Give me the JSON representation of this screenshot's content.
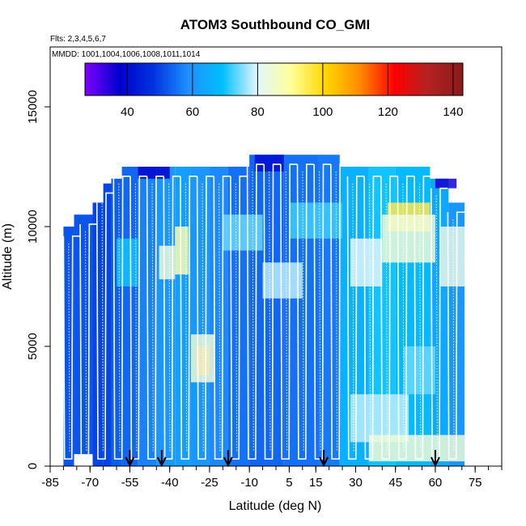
{
  "chart_data": {
    "type": "heatmap",
    "title": "ATOM3 Southbound CO_GMI",
    "flights_label": "Flts: 2,3,4,5,6,7",
    "dates_label": "MMDD: 1001,1004,1006,1008,1011,1014",
    "xlabel": "Latitude (deg N)",
    "ylabel": "Altitude (m)",
    "xlim": [
      -85,
      85
    ],
    "ylim": [
      0,
      17500
    ],
    "x_ticks": [
      -85,
      -70,
      -55,
      -40,
      -25,
      -10,
      5,
      15,
      30,
      45,
      60,
      75
    ],
    "x_minor_tick_step": 5,
    "y_ticks": [
      0,
      5000,
      10000,
      15000
    ],
    "colorbar": {
      "range": [
        27,
        143
      ],
      "ticks": [
        40,
        60,
        80,
        100,
        120,
        140
      ],
      "tick_labels": [
        "40",
        "60",
        "80",
        "100",
        "120",
        "140"
      ],
      "colors": [
        "#7f00ff",
        "#0000cd",
        "#0033e0",
        "#1e90ff",
        "#00bfff",
        "#e0f6ff",
        "#ffff99",
        "#ffd700",
        "#ff8c00",
        "#ff0000",
        "#b22222",
        "#8b1a1a"
      ]
    },
    "curtain_x_range": [
      -80,
      71
    ],
    "curtain_segments": [
      {
        "x": [
          -80,
          -76
        ],
        "top": 10000,
        "bottom": 0,
        "value": 52
      },
      {
        "x": [
          -76,
          -69
        ],
        "top": 10500,
        "bottom": 500,
        "value": 52
      },
      {
        "x": [
          -69,
          -65
        ],
        "top": 11000,
        "bottom": 0,
        "value": 50
      },
      {
        "x": [
          -65,
          -62
        ],
        "top": 11800,
        "bottom": 0,
        "value": 50
      },
      {
        "x": [
          -62,
          -58
        ],
        "top": 12000,
        "bottom": 0,
        "value": 53
      },
      {
        "x": [
          -58,
          -52
        ],
        "top": 12500,
        "bottom": 0,
        "value": 54
      },
      {
        "x": [
          -52,
          -45
        ],
        "top": 12500,
        "bottom": 0,
        "value": 57
      },
      {
        "x": [
          -45,
          -38
        ],
        "top": 12500,
        "bottom": 0,
        "value": 60
      },
      {
        "x": [
          -38,
          -32
        ],
        "top": 12500,
        "bottom": 0,
        "value": 62
      },
      {
        "x": [
          -32,
          -25
        ],
        "top": 12500,
        "bottom": 0,
        "value": 60
      },
      {
        "x": [
          -25,
          -18
        ],
        "top": 12500,
        "bottom": 0,
        "value": 58
      },
      {
        "x": [
          -18,
          -10
        ],
        "top": 12500,
        "bottom": 0,
        "value": 55
      },
      {
        "x": [
          -10,
          3
        ],
        "top": 13000,
        "bottom": 0,
        "value": 54
      },
      {
        "x": [
          3,
          16
        ],
        "top": 13000,
        "bottom": 0,
        "value": 55
      },
      {
        "x": [
          16,
          24
        ],
        "top": 13000,
        "bottom": 0,
        "value": 56
      },
      {
        "x": [
          24,
          35
        ],
        "top": 12500,
        "bottom": 0,
        "value": 66
      },
      {
        "x": [
          35,
          45
        ],
        "top": 12500,
        "bottom": 0,
        "value": 70
      },
      {
        "x": [
          45,
          58
        ],
        "top": 12500,
        "bottom": 0,
        "value": 68
      },
      {
        "x": [
          58,
          65
        ],
        "top": 12000,
        "bottom": 0,
        "value": 64
      },
      {
        "x": [
          65,
          71
        ],
        "top": 11000,
        "bottom": 0,
        "value": 60
      }
    ],
    "curtain_features": [
      {
        "x": [
          -38,
          -33
        ],
        "y": [
          8000,
          10000
        ],
        "value": 88
      },
      {
        "x": [
          -44,
          -38
        ],
        "y": [
          7800,
          9200
        ],
        "value": 84
      },
      {
        "x": [
          -30,
          -25
        ],
        "y": [
          3800,
          5000
        ],
        "value": 112
      },
      {
        "x": [
          -32,
          -23
        ],
        "y": [
          3500,
          5500
        ],
        "value": 84
      },
      {
        "x": [
          28,
          40
        ],
        "y": [
          7500,
          9500
        ],
        "value": 80
      },
      {
        "x": [
          -5,
          10
        ],
        "y": [
          7000,
          8500
        ],
        "value": 78
      },
      {
        "x": [
          42,
          58
        ],
        "y": [
          9800,
          11000
        ],
        "value": 96
      },
      {
        "x": [
          40,
          60
        ],
        "y": [
          8500,
          10500
        ],
        "value": 84
      },
      {
        "x": [
          62,
          71
        ],
        "y": [
          7500,
          10000
        ],
        "value": 82
      },
      {
        "x": [
          28,
          50
        ],
        "y": [
          1000,
          3000
        ],
        "value": 78
      },
      {
        "x": [
          35,
          71
        ],
        "y": [
          200,
          1300
        ],
        "value": 84
      },
      {
        "x": [
          -20,
          -5
        ],
        "y": [
          9000,
          10500
        ],
        "value": 74
      },
      {
        "x": [
          5,
          25
        ],
        "y": [
          9500,
          11000
        ],
        "value": 72
      },
      {
        "x": [
          -60,
          -52
        ],
        "y": [
          7500,
          9500
        ],
        "value": 70
      },
      {
        "x": [
          48,
          60
        ],
        "y": [
          3000,
          5000
        ],
        "value": 74
      },
      {
        "x": [
          -8,
          3
        ],
        "y": [
          12300,
          13000
        ],
        "value": 40
      },
      {
        "x": [
          -52,
          -40
        ],
        "y": [
          12000,
          12500
        ],
        "value": 38
      },
      {
        "x": [
          60,
          68
        ],
        "y": [
          11600,
          12000
        ],
        "value": 36
      }
    ],
    "flight_track_longitude_markers": [
      -55,
      -43,
      -18,
      18,
      60
    ]
  }
}
